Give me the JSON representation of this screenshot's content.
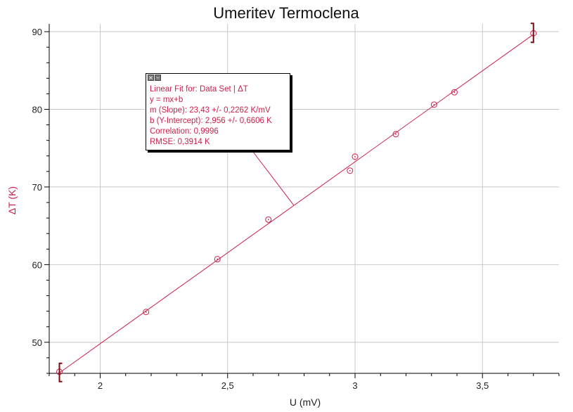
{
  "chart_data": {
    "type": "scatter",
    "title": "Umeritev Termoclena",
    "xlabel": "U (mV)",
    "ylabel": "ΔT (K)",
    "xlim": [
      1.8,
      3.8
    ],
    "ylim": [
      46,
      91
    ],
    "x_ticks": [
      2,
      2.5,
      3,
      3.5
    ],
    "x_tick_labels": [
      "2",
      "2,5",
      "3",
      "3,5"
    ],
    "y_ticks": [
      50,
      60,
      70,
      80,
      90
    ],
    "y_tick_labels": [
      "50",
      "60",
      "70",
      "80",
      "90"
    ],
    "grid": true,
    "series": [
      {
        "points": [
          {
            "x": 1.84,
            "y": 46.2
          },
          {
            "x": 2.18,
            "y": 53.9
          },
          {
            "x": 2.46,
            "y": 60.7
          },
          {
            "x": 2.66,
            "y": 65.8
          },
          {
            "x": 2.98,
            "y": 72.1
          },
          {
            "x": 3.0,
            "y": 73.9
          },
          {
            "x": 3.16,
            "y": 76.8
          },
          {
            "x": 3.31,
            "y": 80.6
          },
          {
            "x": 3.39,
            "y": 82.2
          },
          {
            "x": 3.7,
            "y": 89.8
          }
        ],
        "color": "#cc1f4a"
      }
    ],
    "fit": {
      "type": "linear",
      "slope": 23.43,
      "intercept": 2.956,
      "x_range": [
        1.84,
        3.7
      ],
      "color": "#cc1f4a",
      "annotation_anchor_x": 2.76
    },
    "range_brackets_x": [
      1.84,
      3.7
    ]
  },
  "fit_box": {
    "close_icon": "close-icon",
    "minimize_icon": "minimize-icon",
    "lines": [
      "Linear Fit for: Data Set | ΔT",
      "y = mx+b",
      "m (Slope): 23,43 +/- 0,2262 K/mV",
      "b (Y-Intercept): 2,956 +/- 0,6606 K",
      "Correlation: 0,9996",
      "RMSE: 0,3914 K"
    ]
  },
  "colors": {
    "accent": "#cc1f4a",
    "bracket": "#7a0a14",
    "grid": "#c8c8c8",
    "axis": "#000000"
  }
}
